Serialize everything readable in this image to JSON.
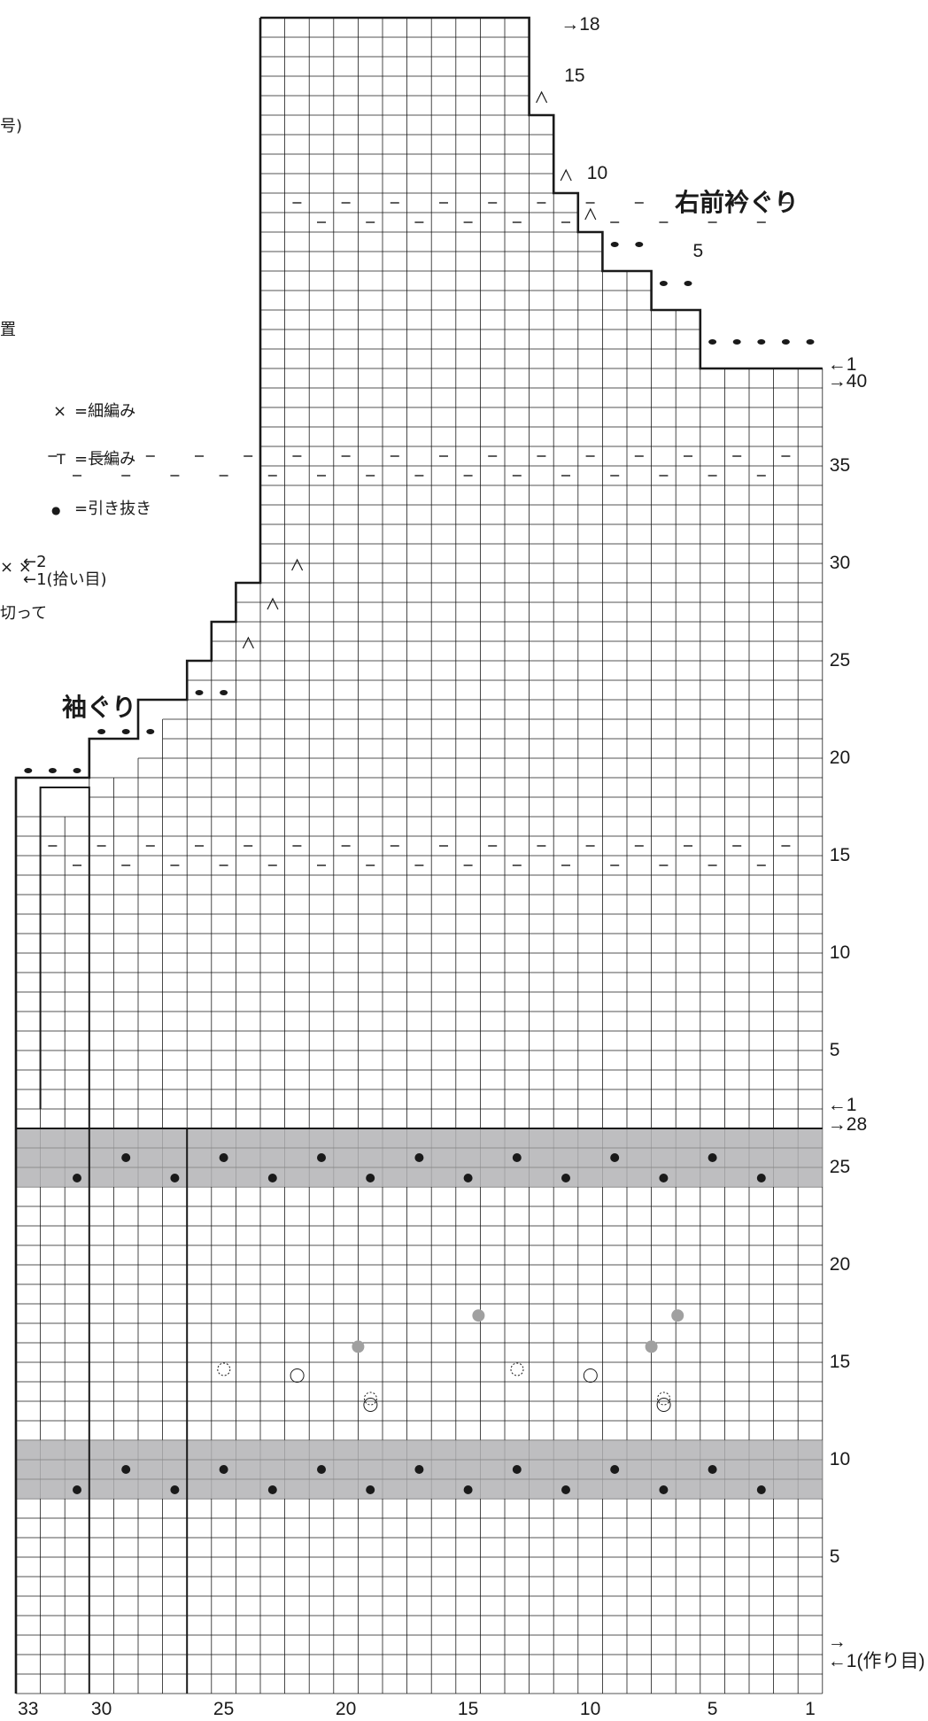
{
  "titles": {
    "neckline": "右前衿ぐり",
    "armhole": "袖ぐり"
  },
  "legend": [
    {
      "symbol": "×",
      "label": "=細編み"
    },
    {
      "symbol": "T",
      "label": "=長編み"
    },
    {
      "symbol": "●",
      "label": "=引き抜き"
    }
  ],
  "cut_left_text": {
    "line1": "号)",
    "line2": "置",
    "row2": "←2",
    "row1": "←1(拾い目)",
    "line3": "切って"
  },
  "column_labels": [
    "33",
    "30",
    "25",
    "20",
    "15",
    "10",
    "5",
    "1"
  ],
  "section_lower_rows": {
    "start": "←1(作り目)",
    "ticks": [
      "5",
      "10",
      "15",
      "20",
      "25"
    ],
    "end": "→28"
  },
  "section_middle_rows": {
    "start": "←1",
    "ticks": [
      "5",
      "10",
      "15"
    ]
  },
  "section_upper_rows": {
    "start": "→40",
    "ticks": [
      "20",
      "25",
      "30",
      "35"
    ]
  },
  "neck_rows": {
    "start": "←1",
    "ticks": [
      "5",
      "10",
      "15"
    ],
    "end": "→18"
  },
  "colors": {
    "grid": "#1a1a1a",
    "shade": "#b3b3b5",
    "gray_dot": "#a0a0a0"
  }
}
